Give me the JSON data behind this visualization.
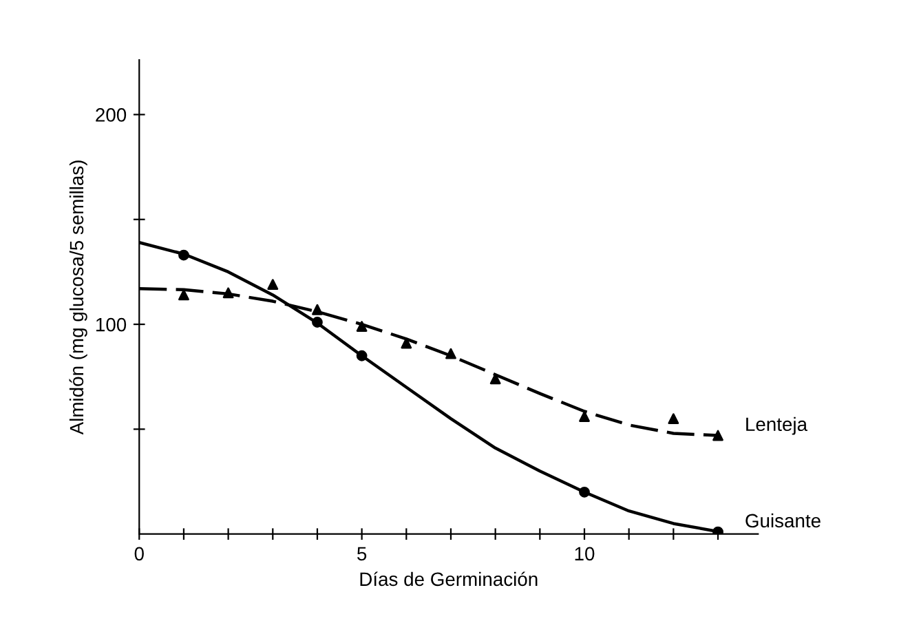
{
  "chart_data": {
    "type": "scatter",
    "xlabel": "Días de Germinación",
    "ylabel": "Almidón (mg glucosa/5 semillas)",
    "xlim": [
      0,
      13.9
    ],
    "ylim": [
      0,
      226
    ],
    "xticks": [
      0,
      {
        "value": 1,
        "label": null
      },
      {
        "value": 2,
        "label": null
      },
      {
        "value": 3,
        "label": null
      },
      {
        "value": 4,
        "label": null
      },
      5,
      {
        "value": 6,
        "label": null
      },
      {
        "value": 7,
        "label": null
      },
      {
        "value": 8,
        "label": null
      },
      {
        "value": 9,
        "label": null
      },
      10,
      {
        "value": 11,
        "label": null
      },
      {
        "value": 12,
        "label": null
      },
      {
        "value": 13,
        "label": null
      }
    ],
    "yticks": [
      {
        "value": 50,
        "label": null
      },
      100,
      {
        "value": 150,
        "label": null
      },
      200
    ],
    "grid": false,
    "legend": false,
    "series": [
      {
        "type": "line",
        "color": "#000000",
        "line_style": "dashed",
        "marker": "none",
        "x": [
          0,
          1,
          2,
          3,
          4,
          5,
          6,
          7,
          8,
          9,
          10,
          11,
          12,
          13
        ],
        "values": [
          117,
          116.5,
          114.5,
          111,
          106,
          100,
          93,
          85,
          76,
          67,
          58.5,
          52,
          48,
          47
        ]
      },
      {
        "type": "line",
        "color": "#000000",
        "line_style": "solid",
        "marker": "none",
        "x": [
          0,
          1,
          2,
          3,
          4,
          5,
          6,
          7,
          8,
          9,
          10,
          11,
          12,
          13
        ],
        "values": [
          139,
          133.5,
          125,
          114,
          100.6,
          85,
          70,
          55,
          41,
          30,
          20,
          11,
          5,
          1.2
        ]
      },
      {
        "name": "Lenteja",
        "color": "#000000",
        "marker": "triangle",
        "x": [
          1,
          2,
          3,
          4,
          5,
          6,
          7,
          8,
          10,
          12,
          13
        ],
        "values": [
          114,
          115,
          119,
          107,
          99,
          91,
          86,
          74,
          56,
          55,
          47
        ]
      },
      {
        "name": "Guisante",
        "color": "#000000",
        "marker": "circle",
        "x": [
          1,
          4,
          5,
          10,
          13
        ],
        "values": [
          133,
          101,
          85,
          20,
          1
        ]
      }
    ]
  }
}
